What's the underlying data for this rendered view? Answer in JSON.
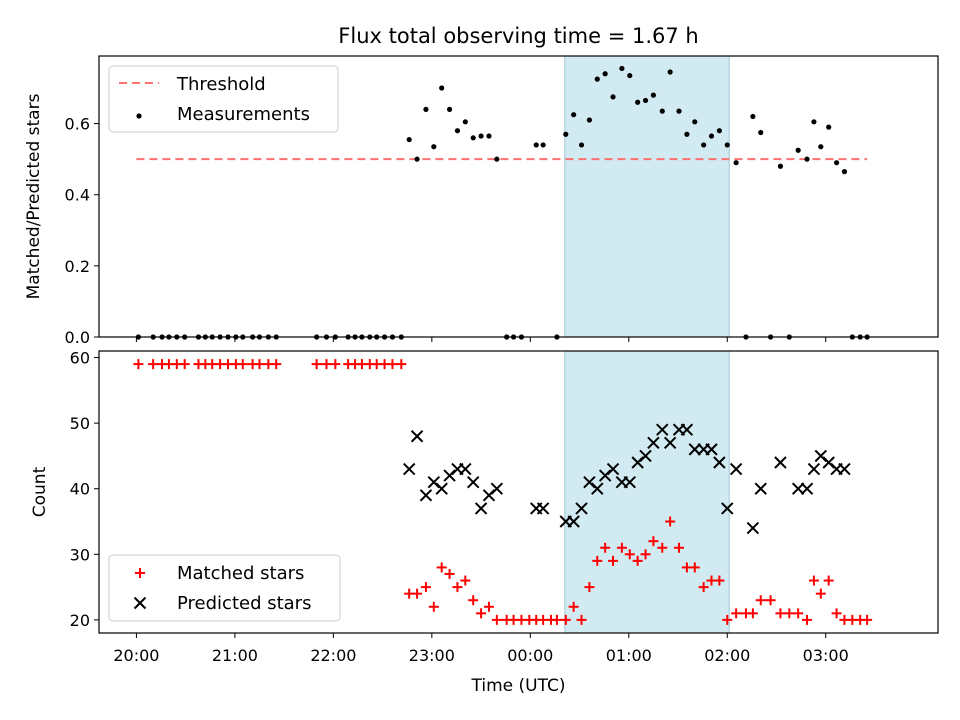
{
  "chart_data": [
    {
      "type": "scatter",
      "title": "Flux total observing time = 1.67 h",
      "ylabel": "Matched/Predicted stars",
      "xlabel": "",
      "xlim": [
        -0.38,
        8.14
      ],
      "ylim": [
        0,
        0.79
      ],
      "y_ticks": [
        0.0,
        0.2,
        0.4,
        0.6
      ],
      "y_tick_labels": [
        "0.0",
        "0.2",
        "0.4",
        "0.6"
      ],
      "x_ticks": [
        0,
        1,
        2,
        3,
        4,
        5,
        6,
        7
      ],
      "shaded_span": [
        4.35,
        6.02
      ],
      "legend_position": "upper left",
      "legend": [
        "Threshold",
        "Measurements"
      ],
      "threshold": {
        "name": "Threshold",
        "x": [
          0,
          7.42
        ],
        "y": 0.5,
        "color": "#ff7070"
      },
      "series": [
        {
          "name": "Measurements",
          "color": "#000000",
          "points": [
            [
              0.02,
              0
            ],
            [
              0.17,
              0
            ],
            [
              0.26,
              0
            ],
            [
              0.33,
              0
            ],
            [
              0.41,
              0
            ],
            [
              0.49,
              0
            ],
            [
              0.63,
              0
            ],
            [
              0.7,
              0
            ],
            [
              0.77,
              0
            ],
            [
              0.85,
              0
            ],
            [
              0.93,
              0
            ],
            [
              1.01,
              0
            ],
            [
              1.08,
              0
            ],
            [
              1.18,
              0
            ],
            [
              1.25,
              0
            ],
            [
              1.34,
              0
            ],
            [
              1.42,
              0
            ],
            [
              1.83,
              0
            ],
            [
              1.93,
              0
            ],
            [
              2.02,
              0
            ],
            [
              2.15,
              0
            ],
            [
              2.22,
              0
            ],
            [
              2.29,
              0
            ],
            [
              2.37,
              0
            ],
            [
              2.44,
              0
            ],
            [
              2.52,
              0
            ],
            [
              2.6,
              0
            ],
            [
              2.69,
              0
            ],
            [
              2.77,
              0.555
            ],
            [
              2.85,
              0.5
            ],
            [
              2.94,
              0.64
            ],
            [
              3.02,
              0.535
            ],
            [
              3.1,
              0.7
            ],
            [
              3.18,
              0.64
            ],
            [
              3.26,
              0.58
            ],
            [
              3.34,
              0.605
            ],
            [
              3.42,
              0.56
            ],
            [
              3.5,
              0.565
            ],
            [
              3.58,
              0.565
            ],
            [
              3.66,
              0.5
            ],
            [
              3.76,
              0
            ],
            [
              3.83,
              0
            ],
            [
              3.91,
              0
            ],
            [
              4.06,
              0.54
            ],
            [
              4.13,
              0.54
            ],
            [
              4.27,
              0
            ],
            [
              4.36,
              0.57
            ],
            [
              4.44,
              0.625
            ],
            [
              4.52,
              0.54
            ],
            [
              4.6,
              0.61
            ],
            [
              4.68,
              0.725
            ],
            [
              4.76,
              0.74
            ],
            [
              4.84,
              0.675
            ],
            [
              4.93,
              0.755
            ],
            [
              5.01,
              0.735
            ],
            [
              5.09,
              0.66
            ],
            [
              5.17,
              0.665
            ],
            [
              5.25,
              0.68
            ],
            [
              5.34,
              0.635
            ],
            [
              5.42,
              0.745
            ],
            [
              5.51,
              0.635
            ],
            [
              5.59,
              0.57
            ],
            [
              5.67,
              0.605
            ],
            [
              5.76,
              0.54
            ],
            [
              5.84,
              0.565
            ],
            [
              5.92,
              0.58
            ],
            [
              6.0,
              0.54
            ],
            [
              6.09,
              0.49
            ],
            [
              6.19,
              0
            ],
            [
              6.26,
              0.62
            ],
            [
              6.34,
              0.575
            ],
            [
              6.44,
              0
            ],
            [
              6.54,
              0.48
            ],
            [
              6.63,
              0
            ],
            [
              6.72,
              0.525
            ],
            [
              6.81,
              0.5
            ],
            [
              6.88,
              0.605
            ],
            [
              6.95,
              0.535
            ],
            [
              7.03,
              0.59
            ],
            [
              7.11,
              0.49
            ],
            [
              7.19,
              0.465
            ],
            [
              7.27,
              0
            ],
            [
              7.35,
              0
            ],
            [
              7.42,
              0
            ]
          ]
        }
      ]
    },
    {
      "type": "scatter",
      "xlabel": "Time (UTC)",
      "ylabel": "Count",
      "xlim": [
        -0.38,
        8.14
      ],
      "ylim": [
        18,
        61
      ],
      "y_ticks": [
        20,
        30,
        40,
        50,
        60
      ],
      "y_tick_labels": [
        "20",
        "30",
        "40",
        "50",
        "60"
      ],
      "x_ticks": [
        0,
        1,
        2,
        3,
        4,
        5,
        6,
        7
      ],
      "x_tick_labels": [
        "20:00",
        "21:00",
        "22:00",
        "23:00",
        "00:00",
        "01:00",
        "02:00",
        "03:00"
      ],
      "shaded_span": [
        4.35,
        6.02
      ],
      "legend_position": "lower left",
      "legend": [
        "Matched stars",
        "Predicted stars"
      ],
      "series": [
        {
          "name": "Matched stars",
          "marker": "+",
          "color": "#ff0000",
          "points": [
            [
              0.02,
              59
            ],
            [
              0.17,
              59
            ],
            [
              0.26,
              59
            ],
            [
              0.33,
              59
            ],
            [
              0.41,
              59
            ],
            [
              0.49,
              59
            ],
            [
              0.63,
              59
            ],
            [
              0.7,
              59
            ],
            [
              0.77,
              59
            ],
            [
              0.85,
              59
            ],
            [
              0.93,
              59
            ],
            [
              1.01,
              59
            ],
            [
              1.08,
              59
            ],
            [
              1.18,
              59
            ],
            [
              1.25,
              59
            ],
            [
              1.34,
              59
            ],
            [
              1.42,
              59
            ],
            [
              1.83,
              59
            ],
            [
              1.93,
              59
            ],
            [
              2.02,
              59
            ],
            [
              2.15,
              59
            ],
            [
              2.22,
              59
            ],
            [
              2.29,
              59
            ],
            [
              2.37,
              59
            ],
            [
              2.44,
              59
            ],
            [
              2.52,
              59
            ],
            [
              2.6,
              59
            ],
            [
              2.69,
              59
            ],
            [
              2.77,
              24
            ],
            [
              2.85,
              24
            ],
            [
              2.94,
              25
            ],
            [
              3.02,
              22
            ],
            [
              3.1,
              28
            ],
            [
              3.18,
              27
            ],
            [
              3.26,
              25
            ],
            [
              3.34,
              26
            ],
            [
              3.42,
              23
            ],
            [
              3.5,
              21
            ],
            [
              3.58,
              22
            ],
            [
              3.66,
              20
            ],
            [
              3.76,
              20
            ],
            [
              3.83,
              20
            ],
            [
              3.91,
              20
            ],
            [
              3.99,
              20
            ],
            [
              4.06,
              20
            ],
            [
              4.13,
              20
            ],
            [
              4.21,
              20
            ],
            [
              4.27,
              20
            ],
            [
              4.36,
              20
            ],
            [
              4.44,
              22
            ],
            [
              4.52,
              20
            ],
            [
              4.6,
              25
            ],
            [
              4.68,
              29
            ],
            [
              4.76,
              31
            ],
            [
              4.84,
              29
            ],
            [
              4.93,
              31
            ],
            [
              5.01,
              30
            ],
            [
              5.09,
              29
            ],
            [
              5.17,
              30
            ],
            [
              5.25,
              32
            ],
            [
              5.34,
              31
            ],
            [
              5.42,
              35
            ],
            [
              5.51,
              31
            ],
            [
              5.59,
              28
            ],
            [
              5.67,
              28
            ],
            [
              5.76,
              25
            ],
            [
              5.84,
              26
            ],
            [
              5.92,
              26
            ],
            [
              6.0,
              20
            ],
            [
              6.09,
              21
            ],
            [
              6.19,
              21
            ],
            [
              6.26,
              21
            ],
            [
              6.34,
              23
            ],
            [
              6.44,
              23
            ],
            [
              6.54,
              21
            ],
            [
              6.63,
              21
            ],
            [
              6.72,
              21
            ],
            [
              6.81,
              20
            ],
            [
              6.88,
              26
            ],
            [
              6.95,
              24
            ],
            [
              7.03,
              26
            ],
            [
              7.11,
              21
            ],
            [
              7.19,
              20
            ],
            [
              7.27,
              20
            ],
            [
              7.35,
              20
            ],
            [
              7.42,
              20
            ]
          ]
        },
        {
          "name": "Predicted stars",
          "marker": "x",
          "color": "#000000",
          "points": [
            [
              2.77,
              43
            ],
            [
              2.85,
              48
            ],
            [
              2.94,
              39
            ],
            [
              3.02,
              41
            ],
            [
              3.1,
              40
            ],
            [
              3.18,
              42
            ],
            [
              3.26,
              43
            ],
            [
              3.34,
              43
            ],
            [
              3.42,
              41
            ],
            [
              3.5,
              37
            ],
            [
              3.58,
              39
            ],
            [
              3.66,
              40
            ],
            [
              4.06,
              37
            ],
            [
              4.13,
              37
            ],
            [
              4.36,
              35
            ],
            [
              4.44,
              35
            ],
            [
              4.52,
              37
            ],
            [
              4.6,
              41
            ],
            [
              4.68,
              40
            ],
            [
              4.76,
              42
            ],
            [
              4.84,
              43
            ],
            [
              4.93,
              41
            ],
            [
              5.01,
              41
            ],
            [
              5.09,
              44
            ],
            [
              5.17,
              45
            ],
            [
              5.25,
              47
            ],
            [
              5.34,
              49
            ],
            [
              5.42,
              47
            ],
            [
              5.51,
              49
            ],
            [
              5.59,
              49
            ],
            [
              5.67,
              46
            ],
            [
              5.76,
              46
            ],
            [
              5.84,
              46
            ],
            [
              5.92,
              44
            ],
            [
              6.0,
              37
            ],
            [
              6.09,
              43
            ],
            [
              6.26,
              34
            ],
            [
              6.34,
              40
            ],
            [
              6.54,
              44
            ],
            [
              6.72,
              40
            ],
            [
              6.81,
              40
            ],
            [
              6.88,
              43
            ],
            [
              6.95,
              45
            ],
            [
              7.03,
              44
            ],
            [
              7.11,
              43
            ],
            [
              7.19,
              43
            ]
          ]
        }
      ]
    }
  ]
}
